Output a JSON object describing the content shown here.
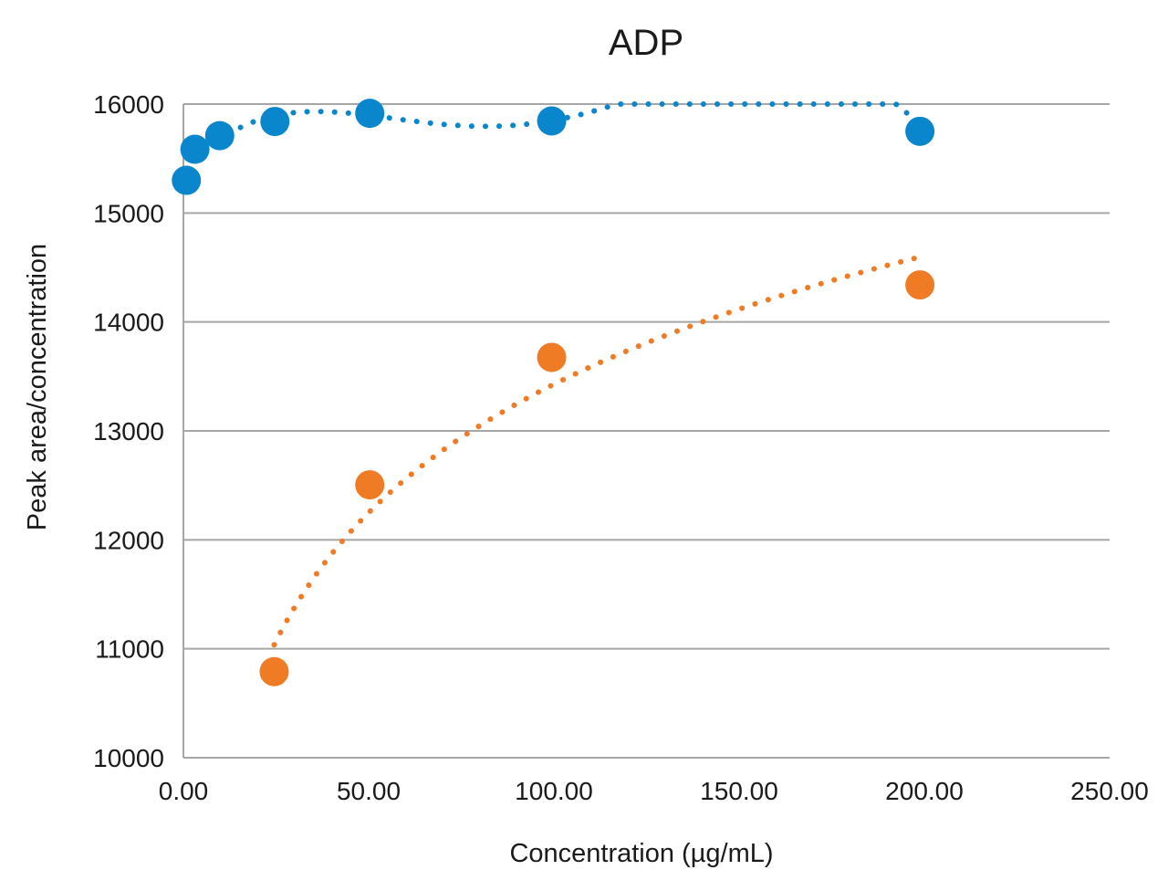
{
  "chart_data": {
    "type": "scatter",
    "title": "ADP",
    "xlabel": "Concentration (µg/mL)",
    "ylabel": "Peak area/concentration",
    "xlim": [
      0,
      250
    ],
    "ylim": [
      10000,
      16000
    ],
    "x_ticks": [
      0,
      50,
      100,
      150,
      200,
      250
    ],
    "x_tick_labels": [
      "0.00",
      "50.00",
      "100.00",
      "150.00",
      "200.00",
      "250.00"
    ],
    "y_ticks": [
      10000,
      11000,
      12000,
      13000,
      14000,
      15000,
      16000
    ],
    "y_tick_labels": [
      "10000",
      "11000",
      "12000",
      "13000",
      "14000",
      "15000",
      "16000"
    ],
    "grid": "horizontal",
    "legend": "none",
    "series": [
      {
        "color": "#0a86cd",
        "trendline": "dotted",
        "points": [
          {
            "x": 0.8,
            "y": 15300
          },
          {
            "x": 3.1,
            "y": 15585
          },
          {
            "x": 9.8,
            "y": 15710
          },
          {
            "x": 24.7,
            "y": 15840
          },
          {
            "x": 50.3,
            "y": 15915
          },
          {
            "x": 99.4,
            "y": 15845
          },
          {
            "x": 198.8,
            "y": 15750
          }
        ]
      },
      {
        "color": "#f07b25",
        "trendline": "dotted",
        "points": [
          {
            "x": 24.5,
            "y": 10790
          },
          {
            "x": 50.3,
            "y": 12505
          },
          {
            "x": 99.4,
            "y": 13675
          },
          {
            "x": 198.8,
            "y": 14340
          }
        ]
      }
    ]
  }
}
